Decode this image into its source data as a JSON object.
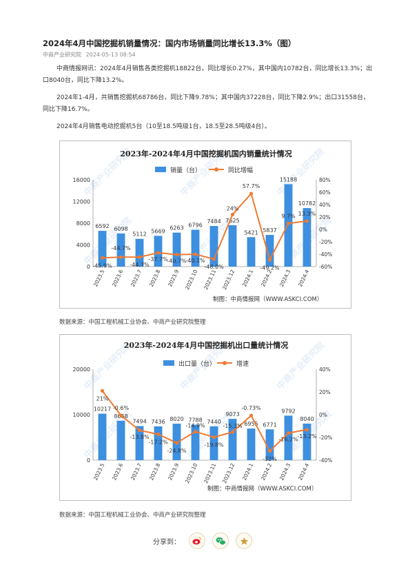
{
  "article": {
    "title": "2024年4月中国挖掘机销量情况：国内市场销量同比增长13.3%（图）",
    "source_name": "中商产业研究院",
    "date": "2024-05-13 08:54",
    "paragraphs": [
      "中商情报网讯：2024年4月销售各类挖掘机18822台，同比增长0.27%，其中国内10782台，同比增长13.3%；出口8040台，同比下降13.2%。",
      "2024年1-4月，共销售挖掘机68786台，同比下降9.78%；其中国内37228台，同比下降2.9%；出口31558台，同比下降16.7%。",
      "2024年4月销售电动挖掘机5台（10至18.5吨级1台，18.5至28.5吨级4台）。"
    ]
  },
  "watermark": "中商产业研究院",
  "chart_data": [
    {
      "type": "bar",
      "title": "2023年-2024年4月中国挖掘机国内销量统计情况",
      "categories": [
        "2023.5",
        "2023.6",
        "2023.7",
        "2023.8",
        "2023.9",
        "2023.10",
        "2023.11",
        "2023.12",
        "2024.1",
        "2024.2",
        "2024.3",
        "2024.4"
      ],
      "series": [
        {
          "name": "销量（台）",
          "kind": "bar",
          "axis": "left",
          "color": "#3d8fe0",
          "values": [
            6592,
            6098,
            5112,
            5669,
            6263,
            6796,
            7484,
            7625,
            5421,
            5837,
            15188,
            10782
          ],
          "labels": [
            "6592",
            "6098",
            "5112",
            "5669",
            "6263",
            "6796",
            "7484",
            "7625",
            "5421",
            "5837",
            "15188",
            "10782"
          ]
        },
        {
          "name": "同比增幅",
          "kind": "line",
          "axis": "right",
          "color": "#f07a30",
          "values": [
            -45.9,
            -44.7,
            -44.7,
            -37.7,
            -40.7,
            -40.1,
            -48.0,
            24,
            57.7,
            -49.2,
            9.7,
            13.3
          ],
          "labels": [
            "-45.9%",
            "-44.7%",
            "-44.7%",
            "-37.7%",
            "-40.7%",
            "-40.1%",
            "-48.0%",
            "24%",
            "57.7%",
            "-49.2%",
            "9.7%",
            "13.3%"
          ]
        }
      ],
      "yleft": {
        "min": 0,
        "max": 16000,
        "ticks": [
          0,
          4000,
          8000,
          12000,
          16000
        ],
        "labels": [
          "0",
          "4000",
          "8000",
          "12000",
          "16000"
        ]
      },
      "yright": {
        "min": -60,
        "max": 80,
        "ticks": [
          -60,
          -40,
          -20,
          0,
          20,
          40,
          60,
          80
        ],
        "labels": [
          "-60%",
          "-40%",
          "-20%",
          "0%",
          "20%",
          "40%",
          "60%",
          "80%"
        ]
      },
      "legend_position": "top",
      "credit": "制图：中商情报网（WWW.ASKCI.COM）"
    },
    {
      "type": "bar",
      "title": "2023年-2024年4月中国挖掘机出口量统计情况",
      "categories": [
        "2023.5",
        "2023.6",
        "2023.7",
        "2023.8",
        "2023.9",
        "2023.10",
        "2023.11",
        "2023.12",
        "2024.1",
        "2024.2",
        "2024.3",
        "2024.4"
      ],
      "series": [
        {
          "name": "出口量（台）",
          "kind": "bar",
          "axis": "left",
          "color": "#3d8fe0",
          "values": [
            10217,
            8668,
            7494,
            7436,
            8020,
            7788,
            7440,
            9073,
            6955,
            6771,
            9792,
            8040
          ],
          "labels": [
            "10217",
            "8668",
            "7494",
            "7436",
            "8020",
            "7788",
            "7440",
            "9073",
            "6955",
            "6771",
            "9792",
            "8040"
          ]
        },
        {
          "name": "增速",
          "kind": "line",
          "axis": "right",
          "color": "#f07a30",
          "values": [
            21,
            -0.6,
            -13.8,
            -17.2,
            -24.8,
            -14.9,
            -19.8,
            -15.3,
            -0.73,
            -32,
            -16.2,
            -13.2
          ],
          "labels": [
            "21%",
            "-0.6%",
            "-13.8%",
            "-17.2%",
            "-24.8%",
            "-14.9%",
            "-19.8%",
            "-15.3%",
            "-0.73%",
            "-32%",
            "-16.2%",
            "-13.2%"
          ]
        }
      ],
      "yleft": {
        "min": 0,
        "max": 20000,
        "ticks": [
          0,
          10000,
          20000
        ],
        "labels": [
          "0",
          "10000",
          "20000"
        ]
      },
      "yright": {
        "min": -40,
        "max": 40,
        "ticks": [
          -40,
          -20,
          0,
          20,
          40
        ],
        "labels": [
          "-40%",
          "-20%",
          "0%",
          "20%",
          "40%"
        ]
      },
      "legend_position": "top",
      "credit": "制图：中商情报网（WWW.ASKCI.COM）"
    }
  ],
  "sources": [
    "数据来源：中国工程机械工业协会、中商产业研究院整理",
    "数据来源：中国工程机械工业协会、中商产业研究院整理"
  ],
  "share": {
    "label": "分享到：",
    "buttons": [
      {
        "name": "weibo-icon",
        "color": "#e6162d"
      },
      {
        "name": "wechat-icon",
        "color": "#2aae67"
      },
      {
        "name": "favorite-star-icon",
        "color": "#c8a040"
      }
    ]
  }
}
